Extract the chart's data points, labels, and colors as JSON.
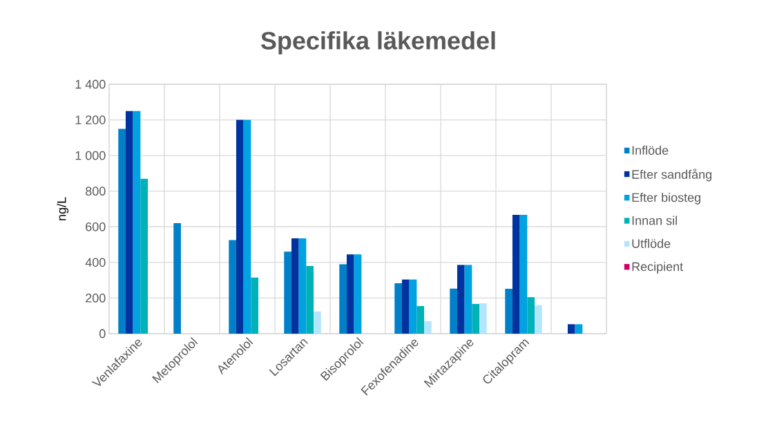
{
  "chart_data": {
    "type": "bar",
    "title": "Specifika läkemedel",
    "ylabel": "ng/L",
    "categories": [
      "Venlafaxine",
      "Metoprolol",
      "Atenolol",
      "Losartan",
      "Bisoprolol",
      "Fexofenadine",
      "Mirtazapine",
      "Citalopram",
      null
    ],
    "series": [
      {
        "name": "Inflöde",
        "color": "#0080c8",
        "values": [
          1150,
          620,
          525,
          460,
          390,
          283,
          253,
          252,
          null
        ]
      },
      {
        "name": "Efter sandfång",
        "color": "#00339f",
        "values": [
          1250,
          null,
          1200,
          535,
          445,
          304,
          386,
          667,
          53
        ]
      },
      {
        "name": "Efter biosteg",
        "color": "#00a2e1",
        "values": [
          1250,
          null,
          1200,
          535,
          445,
          304,
          386,
          667,
          53
        ]
      },
      {
        "name": "Innan sil",
        "color": "#00b2b8",
        "values": [
          870,
          null,
          315,
          380,
          null,
          155,
          167,
          205,
          null
        ]
      },
      {
        "name": "Utflöde",
        "color": "#b3e6fb",
        "values": [
          null,
          null,
          null,
          125,
          null,
          70,
          170,
          160,
          null
        ]
      },
      {
        "name": "Recipient",
        "color": "#cc0066",
        "values": [
          null,
          null,
          null,
          null,
          null,
          null,
          null,
          null,
          null
        ]
      }
    ],
    "ylim": [
      0,
      1400
    ],
    "yticks": [
      0,
      200,
      400,
      600,
      800,
      {
        "value": 1000,
        "label": "1 000"
      },
      {
        "value": 1200,
        "label": "1 200"
      },
      {
        "value": 1400,
        "label": "1 400"
      }
    ],
    "grid": true,
    "legend": "right"
  }
}
